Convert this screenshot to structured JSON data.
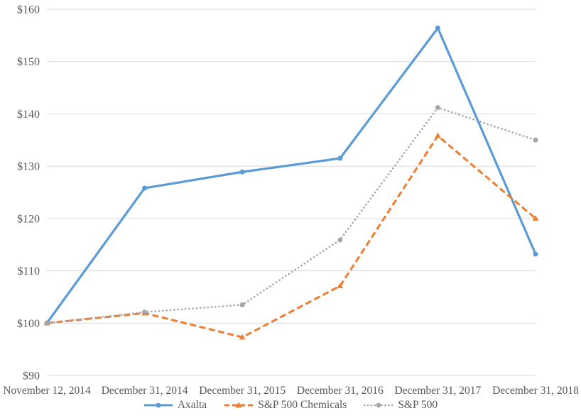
{
  "chart_data": {
    "type": "line",
    "title": "",
    "categories": [
      "November 12, 2014",
      "December 31, 2014",
      "December 31, 2015",
      "December 31, 2016",
      "December 31, 2017",
      "December 31, 2018"
    ],
    "series": [
      {
        "name": "Axalta",
        "color": "#5B9BD5",
        "line_style": "solid",
        "marker": "circle",
        "values": [
          100.0,
          125.8,
          128.9,
          131.5,
          156.4,
          113.2
        ]
      },
      {
        "name": "S&P 500 Chemicals",
        "color": "#ED7D31",
        "line_style": "dashed",
        "marker": "triangle",
        "values": [
          100.0,
          101.9,
          97.3,
          107.1,
          135.8,
          120.0
        ]
      },
      {
        "name": "S&P 500",
        "color": "#A5A5A5",
        "line_style": "dotted",
        "marker": "circle",
        "values": [
          100.0,
          102.1,
          103.5,
          115.9,
          141.2,
          135.0
        ]
      }
    ],
    "y_axis": {
      "min": 90,
      "max": 160,
      "ticks": [
        {
          "label": "$160",
          "value": 160
        },
        {
          "label": "$150",
          "value": 150
        },
        {
          "label": "$140",
          "value": 140
        },
        {
          "label": "$130",
          "value": 130
        },
        {
          "label": "$120",
          "value": 120
        },
        {
          "label": "$110",
          "value": 110
        },
        {
          "label": "$100",
          "value": 100
        },
        {
          "label": "$90",
          "value": 90
        }
      ]
    },
    "xlabel": "",
    "ylabel": "",
    "grid": true,
    "legend_position": "bottom",
    "colors": {
      "text": "#595959",
      "gridline": "#D9D9D9",
      "background": "#FFFFFF"
    }
  }
}
